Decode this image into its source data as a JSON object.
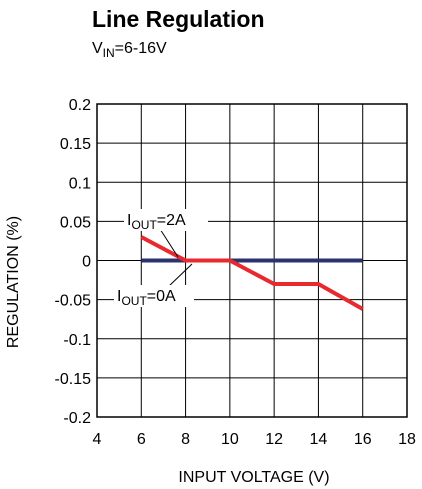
{
  "chart_data": {
    "type": "line",
    "title": "Line Regulation",
    "condition": {
      "main": "V",
      "sub": "IN",
      "rest": "=6-16V"
    },
    "xlabel": "INPUT VOLTAGE (V)",
    "ylabel": "REGULATION (%)",
    "xlim": [
      4,
      18
    ],
    "ylim": [
      -0.2,
      0.2
    ],
    "x_ticks": [
      "4",
      "6",
      "8",
      "10",
      "12",
      "14",
      "16",
      "18"
    ],
    "y_ticks": [
      "0.2",
      "0.15",
      "0.1",
      "0.05",
      "0",
      "-0.05",
      "-0.1",
      "-0.15",
      "-0.2"
    ],
    "grid": true,
    "series": [
      {
        "label_main": "I",
        "label_sub": "OUT",
        "label_rest": "=0A",
        "color": "#2b3270",
        "x": [
          6,
          8,
          10,
          12,
          14,
          16
        ],
        "y": [
          0,
          0,
          0,
          0,
          0,
          0
        ]
      },
      {
        "label_main": "I",
        "label_sub": "OUT",
        "label_rest": "=2A",
        "color": "#e8292e",
        "x": [
          6,
          8,
          10,
          12,
          14,
          16
        ],
        "y": [
          0.03,
          0,
          0,
          -0.03,
          -0.03,
          -0.062
        ]
      }
    ]
  }
}
